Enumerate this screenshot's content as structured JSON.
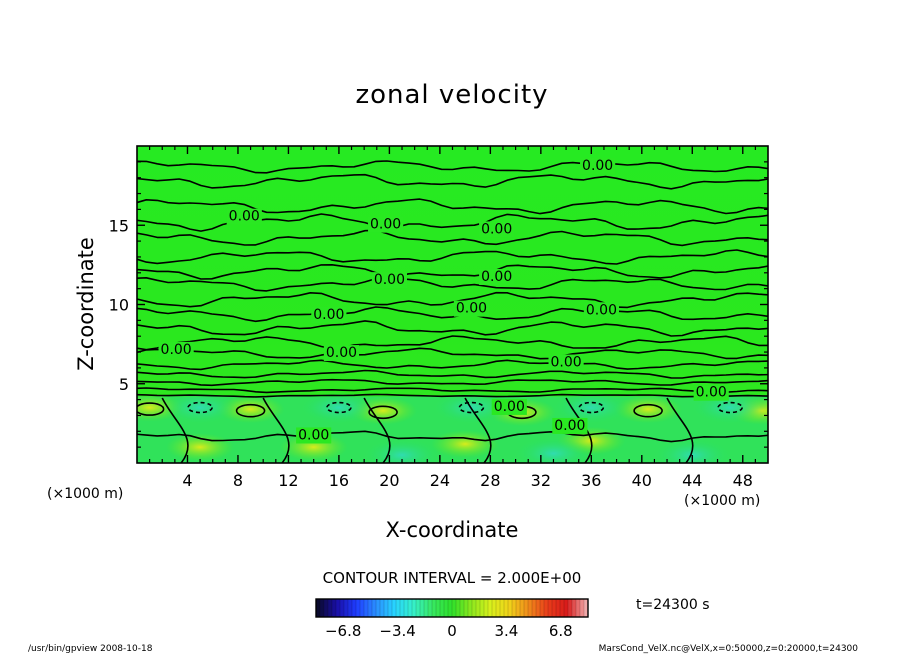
{
  "chart_data": {
    "type": "contour",
    "title": "zonal velocity",
    "xlabel": "X-coordinate",
    "ylabel": "Z-coordinate",
    "x_unit": "(×1000 m)",
    "y_unit": "(×1000 m)",
    "xlim": [
      0,
      50
    ],
    "ylim": [
      0,
      20
    ],
    "x_ticks": [
      4,
      8,
      12,
      16,
      20,
      24,
      28,
      32,
      36,
      40,
      44,
      48
    ],
    "y_ticks": [
      5,
      10,
      15
    ],
    "contour_interval": "CONTOUR INTERVAL = 2.000E+00",
    "contour_label": "0.00",
    "contour_labels": [
      {
        "x": 36.5,
        "z": 18.8,
        "text": "0.00"
      },
      {
        "x": 8.5,
        "z": 15.6,
        "text": "0.00"
      },
      {
        "x": 19.7,
        "z": 15.1,
        "text": "0.00"
      },
      {
        "x": 28.5,
        "z": 14.8,
        "text": "0.00"
      },
      {
        "x": 20,
        "z": 11.6,
        "text": "0.00"
      },
      {
        "x": 28.5,
        "z": 11.8,
        "text": "0.00"
      },
      {
        "x": 15.2,
        "z": 9.4,
        "text": "0.00"
      },
      {
        "x": 26.5,
        "z": 9.8,
        "text": "0.00"
      },
      {
        "x": 36.8,
        "z": 9.7,
        "text": "0.00"
      },
      {
        "x": 3.1,
        "z": 7.2,
        "text": "0.00"
      },
      {
        "x": 16.2,
        "z": 7.0,
        "text": "0.00"
      },
      {
        "x": 34,
        "z": 6.4,
        "text": "0.00"
      },
      {
        "x": 45.5,
        "z": 4.5,
        "text": "0.00"
      },
      {
        "x": 29.5,
        "z": 3.6,
        "text": "0.00"
      },
      {
        "x": 34.3,
        "z": 2.4,
        "text": "0.00"
      },
      {
        "x": 14,
        "z": 1.8,
        "text": "0.00"
      }
    ],
    "colorbar": {
      "min": -8.5,
      "max": 8.5,
      "ticks": [
        -6.8,
        -3.4,
        0,
        3.4,
        6.8
      ],
      "tick_labels": [
        "−6.8",
        "−3.4",
        "0",
        "3.4",
        "6.8"
      ],
      "colors": [
        "#0a0a2e",
        "#1a0fa8",
        "#1f3cff",
        "#2a8cff",
        "#28d4ff",
        "#36f0c8",
        "#38e860",
        "#2ee02a",
        "#8ce81e",
        "#d8f01c",
        "#f0d21a",
        "#f08a1a",
        "#e83c1a",
        "#d81a1a",
        "#f0a8a8"
      ]
    },
    "time_label": "t=24300 s",
    "grid": false,
    "legend": "none"
  },
  "footer": {
    "left": "/usr/bin/gpview   2008-10-18",
    "right": "MarsCond_VelX.nc@VelX,x=0:50000,z=0:20000,t=24300"
  },
  "colors": {
    "field_base": "#22ee2a",
    "field_upper": "#2aea20",
    "field_cool": "#28d884",
    "field_warm": "#c8ec20"
  }
}
